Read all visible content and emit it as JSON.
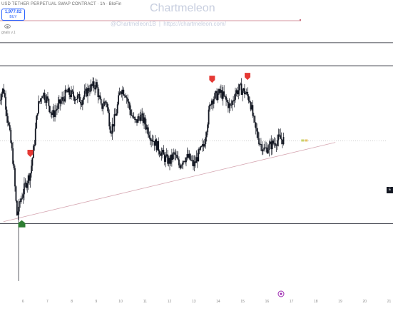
{
  "header": {
    "title": "USD TETHER PERPETUAL SWAP CONTRACT · 1h · BloFin",
    "price": "1,977.02",
    "action": "BUY",
    "indicator": "gnals v.1"
  },
  "watermark": {
    "title": "Chartmeleon",
    "subtitle": "@Chartmeleon1B | https://chartmeleon.com/"
  },
  "right_tag": "E",
  "colors": {
    "candle": "#131722",
    "sell_marker": "#e53935",
    "buy_marker": "#2e7d32",
    "trendline": "#d6a7b2",
    "level_line": "#131722",
    "price_line": "#b0b0b0",
    "top_line": "#c9707f",
    "icon_purple": "#9c27b0"
  },
  "chart_data": {
    "type": "candlestick",
    "x_tick_labels": [
      "6",
      "7",
      "8",
      "9",
      "10",
      "11",
      "12",
      "13",
      "14",
      "15",
      "16",
      "17",
      "18",
      "19",
      "20",
      "21"
    ],
    "xlim": [
      5,
      21
    ],
    "ylim": [
      1780,
      2160
    ],
    "grid": false,
    "horizontal_levels": [
      2105,
      2075,
      1870
    ],
    "current_price": 1977,
    "trendline": {
      "from": [
        5.2,
        1872
      ],
      "to": [
        18.8,
        1975
      ]
    },
    "projection": {
      "to": 19.5
    },
    "series_ohlc_path": [
      [
        5.0,
        2030
      ],
      [
        5.2,
        2045
      ],
      [
        5.4,
        2000
      ],
      [
        5.6,
        1950
      ],
      [
        5.75,
        1880
      ],
      [
        5.9,
        1900
      ],
      [
        6.1,
        1920
      ],
      [
        6.3,
        1935
      ],
      [
        6.45,
        1970
      ],
      [
        6.6,
        2020
      ],
      [
        6.8,
        2040
      ],
      [
        7.0,
        2030
      ],
      [
        7.2,
        2010
      ],
      [
        7.5,
        2025
      ],
      [
        7.8,
        2040
      ],
      [
        8.1,
        2035
      ],
      [
        8.4,
        2030
      ],
      [
        8.7,
        2045
      ],
      [
        9.0,
        2050
      ],
      [
        9.2,
        2020
      ],
      [
        9.4,
        2030
      ],
      [
        9.6,
        1990
      ],
      [
        9.8,
        2010
      ],
      [
        10.0,
        2045
      ],
      [
        10.2,
        2040
      ],
      [
        10.4,
        2015
      ],
      [
        10.6,
        2000
      ],
      [
        10.8,
        2010
      ],
      [
        11.0,
        2000
      ],
      [
        11.2,
        1985
      ],
      [
        11.4,
        1975
      ],
      [
        11.6,
        1965
      ],
      [
        11.8,
        1955
      ],
      [
        12.0,
        1950
      ],
      [
        12.2,
        1960
      ],
      [
        12.4,
        1945
      ],
      [
        12.6,
        1955
      ],
      [
        12.8,
        1955
      ],
      [
        13.0,
        1945
      ],
      [
        13.2,
        1960
      ],
      [
        13.4,
        1970
      ],
      [
        13.55,
        2000
      ],
      [
        13.7,
        2030
      ],
      [
        13.9,
        2035
      ],
      [
        14.1,
        2040
      ],
      [
        14.3,
        2030
      ],
      [
        14.5,
        2020
      ],
      [
        14.7,
        2040
      ],
      [
        14.9,
        2045
      ],
      [
        15.1,
        2040
      ],
      [
        15.3,
        2030
      ],
      [
        15.5,
        1995
      ],
      [
        15.7,
        1975
      ],
      [
        15.9,
        1965
      ],
      [
        16.1,
        1970
      ],
      [
        16.3,
        1975
      ],
      [
        16.5,
        1980
      ],
      [
        16.7,
        1978
      ]
    ],
    "sell_markers_x": [
      6.3,
      13.75,
      15.2
    ],
    "buy_markers_x": [
      5.95
    ]
  }
}
